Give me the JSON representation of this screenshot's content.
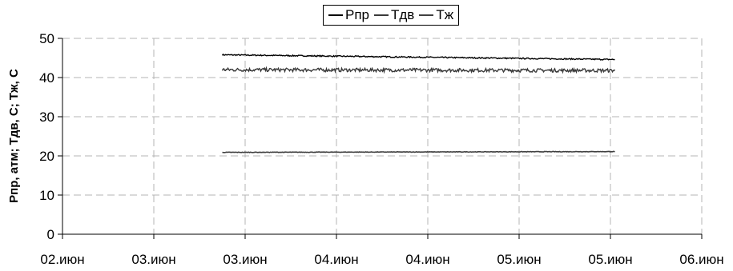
{
  "chart_data": {
    "type": "line",
    "title": "",
    "xlabel": "",
    "ylabel": "Рпр, атм; Тдв, С; Тж, С",
    "ylim": [
      0,
      50
    ],
    "yticks": [
      0,
      10,
      20,
      30,
      40,
      50
    ],
    "xlim": [
      "02.06 00:00",
      "06.06 00:00"
    ],
    "xticks": [
      "02.июн",
      "03.июн",
      "03.июн",
      "04.июн",
      "04.июн",
      "05.июн",
      "05.июн",
      "06.июн"
    ],
    "grid": true,
    "legend_position": "top-center",
    "series": [
      {
        "name": "Рпр",
        "color": "#000000",
        "x": [
          "03.06 00:00",
          "05.06 11:00"
        ],
        "y_start": 45.8,
        "y_end": 44.6,
        "noise": 0.15
      },
      {
        "name": "Тдв",
        "color": "#3a3a3a",
        "x": [
          "03.06 00:00",
          "05.06 11:00"
        ],
        "y_start": 42.0,
        "y_end": 41.8,
        "noise": 0.45
      },
      {
        "name": "Тж",
        "color": "#404040",
        "x": [
          "03.06 00:00",
          "05.06 11:00"
        ],
        "y_start": 20.9,
        "y_end": 21.1,
        "noise": 0.06
      }
    ]
  }
}
